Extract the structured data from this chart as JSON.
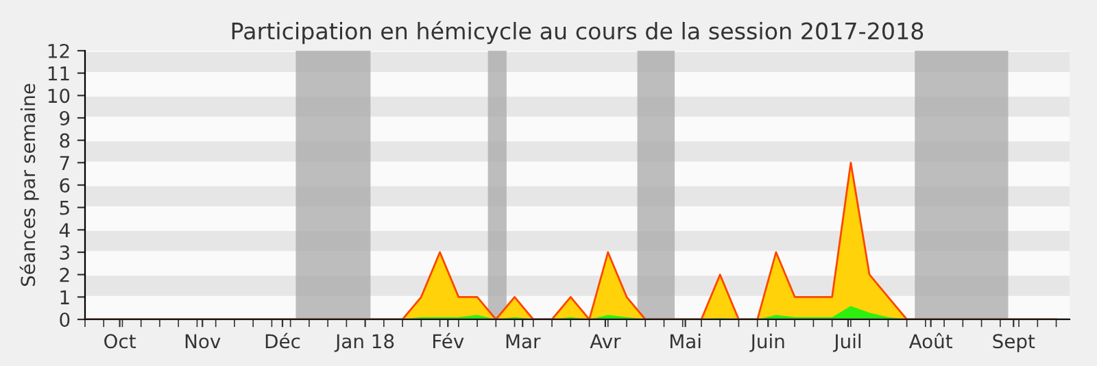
{
  "chart_data": {
    "type": "area",
    "title": "Participation en hémicycle au cours de la session 2017-2018",
    "ylabel": "Séances par semaine",
    "x": [
      "2017-09-18",
      "2017-09-25",
      "2017-10-02",
      "2017-10-09",
      "2017-10-16",
      "2017-10-23",
      "2017-10-30",
      "2017-11-06",
      "2017-11-13",
      "2017-11-20",
      "2017-11-27",
      "2017-12-04",
      "2017-12-11",
      "2017-12-18",
      "2017-12-25",
      "2018-01-01",
      "2018-01-08",
      "2018-01-15",
      "2018-01-22",
      "2018-01-29",
      "2018-02-05",
      "2018-02-12",
      "2018-02-19",
      "2018-02-26",
      "2018-03-05",
      "2018-03-12",
      "2018-03-19",
      "2018-03-26",
      "2018-04-02",
      "2018-04-09",
      "2018-04-16",
      "2018-04-23",
      "2018-04-30",
      "2018-05-07",
      "2018-05-14",
      "2018-05-21",
      "2018-05-28",
      "2018-06-04",
      "2018-06-11",
      "2018-06-18",
      "2018-06-25",
      "2018-07-02",
      "2018-07-09",
      "2018-07-16",
      "2018-07-23",
      "2018-07-30",
      "2018-08-06",
      "2018-08-13",
      "2018-08-20",
      "2018-08-27",
      "2018-09-03",
      "2018-09-10",
      "2018-09-17"
    ],
    "series": [
      {
        "color": "#ffd20a",
        "values": [
          0,
          0,
          0,
          0,
          0,
          0,
          0,
          0,
          0,
          0,
          0,
          0,
          0,
          0,
          0,
          0,
          0,
          0,
          1,
          3,
          1,
          1,
          0,
          1,
          0,
          0,
          1,
          0,
          3,
          1,
          0,
          0,
          0,
          0,
          2,
          0,
          0,
          3,
          1,
          1,
          1,
          7,
          2,
          1,
          0,
          0,
          0,
          0,
          0,
          0,
          0,
          0,
          0
        ]
      },
      {
        "color": "#2ef00f",
        "values": [
          0,
          0,
          0,
          0,
          0,
          0,
          0,
          0,
          0,
          0,
          0,
          0,
          0,
          0,
          0,
          0,
          0,
          0,
          0.1,
          0.1,
          0.1,
          0.2,
          0,
          0.1,
          0,
          0,
          0.1,
          0,
          0.2,
          0.1,
          0,
          0,
          0,
          0,
          0.05,
          0,
          0,
          0.2,
          0.1,
          0.1,
          0.1,
          0.6,
          0.3,
          0.1,
          0,
          0,
          0,
          0,
          0,
          0,
          0,
          0,
          0
        ]
      }
    ],
    "xlim": [
      "2017-09-18",
      "2018-09-22"
    ],
    "xticks": [
      {
        "value": "2017-10-01",
        "label": "Oct"
      },
      {
        "value": "2017-11-01",
        "label": "Nov"
      },
      {
        "value": "2017-12-01",
        "label": "Déc"
      },
      {
        "value": "2018-01-01",
        "label": "Jan 18"
      },
      {
        "value": "2018-02-01",
        "label": "Fév"
      },
      {
        "value": "2018-03-01",
        "label": "Mar"
      },
      {
        "value": "2018-04-01",
        "label": "Avr"
      },
      {
        "value": "2018-05-01",
        "label": "Mai"
      },
      {
        "value": "2018-06-01",
        "label": "Juin"
      },
      {
        "value": "2018-07-01",
        "label": "Juil"
      },
      {
        "value": "2018-08-01",
        "label": "Août"
      },
      {
        "value": "2018-09-01",
        "label": "Sept"
      }
    ],
    "ylim": [
      0,
      12
    ],
    "yticks": [
      0,
      1,
      2,
      3,
      4,
      5,
      6,
      7,
      8,
      9,
      10,
      11,
      12
    ],
    "bands": [
      {
        "axis": "x",
        "from": "2017-12-06",
        "to": "2018-01-03",
        "color": "#a8a8a8"
      },
      {
        "axis": "x",
        "from": "2018-02-16",
        "to": "2018-02-23",
        "color": "#a8a8a8"
      },
      {
        "axis": "x",
        "from": "2018-04-13",
        "to": "2018-04-27",
        "color": "#a8a8a8"
      },
      {
        "axis": "x",
        "from": "2018-07-26",
        "to": "2018-08-30",
        "color": "#a8a8a8"
      }
    ]
  }
}
